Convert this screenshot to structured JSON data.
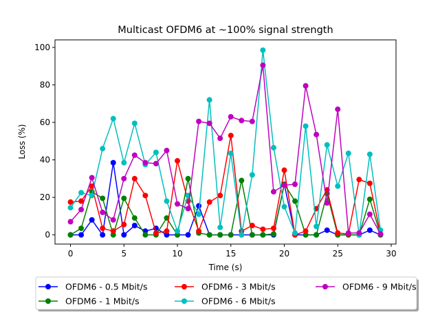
{
  "chart_data": {
    "type": "line",
    "title": "Multicast OFDM6 at ~100% signal strength",
    "xlabel": "Time (s)",
    "ylabel": "Loss (%)",
    "xlim": [
      -1.45,
      30.45
    ],
    "ylim": [
      -4.9,
      104
    ],
    "xticks": [
      0,
      5,
      10,
      15,
      20,
      25,
      30
    ],
    "yticks": [
      0,
      20,
      40,
      60,
      80,
      100
    ],
    "grid": false,
    "legend": {
      "placement": "below",
      "columns": 3
    },
    "x": [
      0,
      1,
      2,
      3,
      4,
      5,
      6,
      7,
      8,
      9,
      10,
      11,
      12,
      13,
      14,
      15,
      16,
      17,
      18,
      19,
      20,
      21,
      22,
      23,
      24,
      25,
      26,
      27,
      28,
      29
    ],
    "series": [
      {
        "name": "OFDM6 - 0.5 Mbit/s",
        "color": "#0000ff",
        "values": [
          0,
          0,
          8,
          0,
          38.5,
          0,
          5,
          2,
          3.5,
          0,
          0,
          0,
          15.5,
          0,
          0,
          0,
          0,
          0,
          0,
          0,
          27,
          0,
          0,
          0,
          2.5,
          0,
          0,
          0,
          2.5,
          0
        ]
      },
      {
        "name": "OFDM6 - 1 Mbit/s",
        "color": "#008000",
        "values": [
          0,
          3.5,
          23,
          19.5,
          0,
          19.5,
          9,
          0,
          0,
          9,
          0,
          30,
          1,
          0,
          0,
          0,
          29,
          0,
          0,
          0.5,
          27,
          18,
          0,
          0,
          22,
          0,
          0,
          0,
          19,
          0
        ]
      },
      {
        "name": "OFDM6 - 3 Mbit/s",
        "color": "#ff0000",
        "values": [
          17.5,
          18,
          26,
          3.5,
          2,
          5.5,
          30,
          21,
          1,
          2,
          39.5,
          18,
          2,
          17.5,
          21,
          53,
          2,
          5,
          3,
          3.5,
          34.5,
          0,
          2,
          14,
          24,
          1,
          0.5,
          29.5,
          27.5,
          0.5
        ]
      },
      {
        "name": "OFDM6 - 6 Mbit/s",
        "color": "#00bfbf",
        "values": [
          14.5,
          22.5,
          21,
          46,
          62,
          38.5,
          59.5,
          37.5,
          44,
          18,
          2,
          21,
          11,
          72,
          4,
          43.5,
          0,
          32,
          98.5,
          46.5,
          15,
          1,
          58,
          4.5,
          48,
          26,
          43.5,
          0,
          43,
          2.5
        ]
      },
      {
        "name": "OFDM6 - 9 Mbit/s",
        "color": "#bf00bf",
        "values": [
          7,
          13.5,
          30.5,
          12,
          8,
          30,
          42.5,
          38.5,
          38,
          45,
          16.5,
          14,
          60.5,
          59.5,
          51.5,
          63,
          61,
          60.5,
          90.5,
          23,
          26.5,
          27,
          79.5,
          53.5,
          17,
          67,
          1,
          1,
          11,
          0.5
        ]
      }
    ]
  }
}
